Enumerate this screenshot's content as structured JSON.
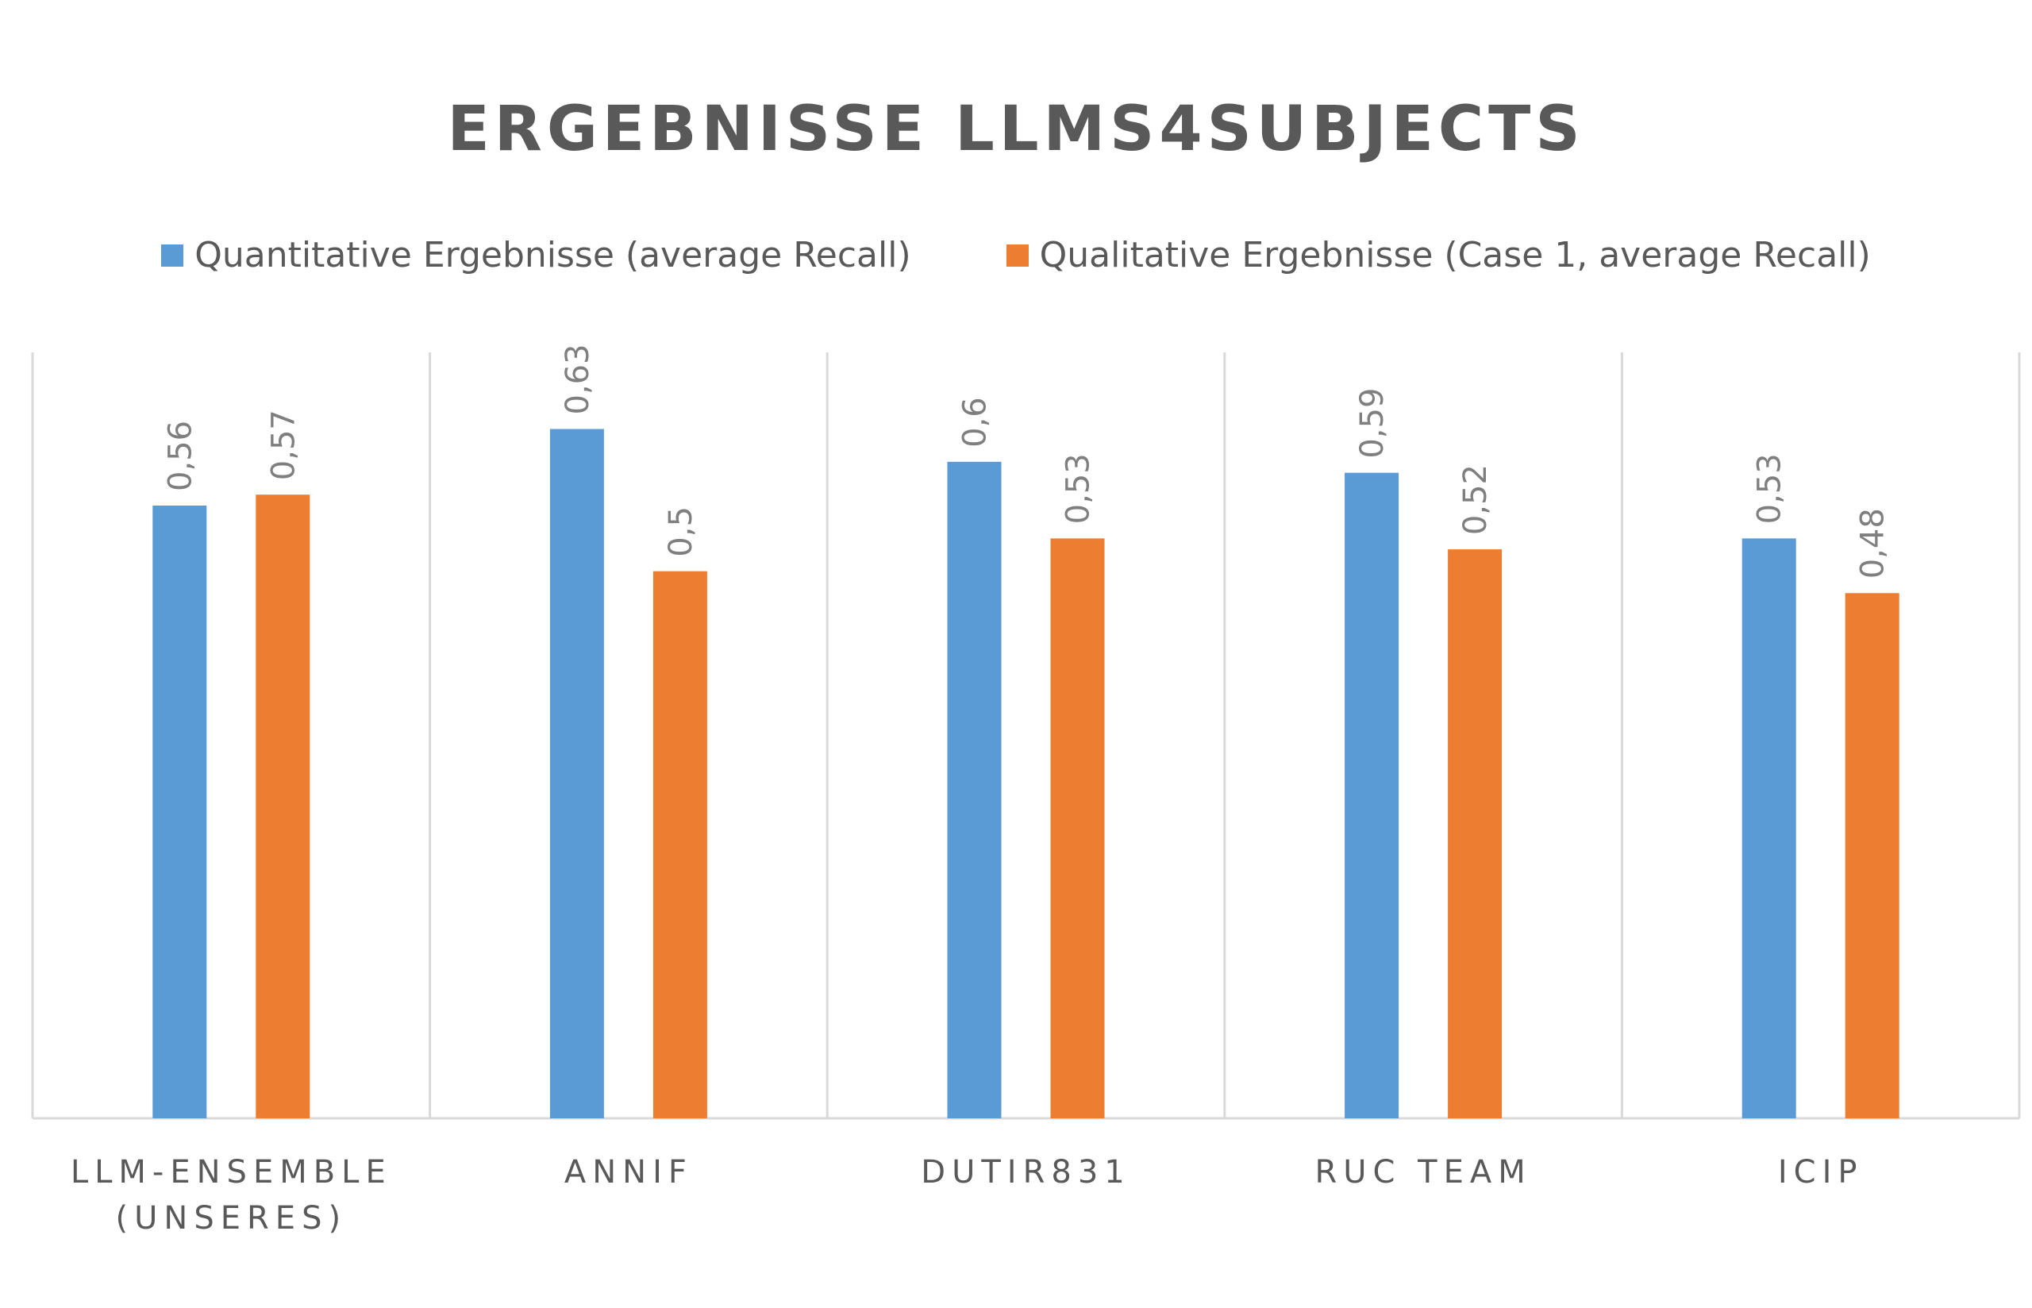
{
  "chart_data": {
    "type": "bar",
    "title": "ERGEBNISSE LLMS4SUBJECTS",
    "categories": [
      "LLM-ENSEMBLE (UNSERES)",
      "ANNIF",
      "DUTIR831",
      "RUC TEAM",
      "ICIP"
    ],
    "category_lines": [
      [
        "LLM-ENSEMBLE",
        "(UNSERES)"
      ],
      [
        "ANNIF"
      ],
      [
        "DUTIR831"
      ],
      [
        "RUC TEAM"
      ],
      [
        "ICIP"
      ]
    ],
    "series": [
      {
        "name": "Quantitative Ergebnisse (average Recall)",
        "color": "#5b9bd5",
        "values": [
          0.56,
          0.63,
          0.6,
          0.59,
          0.53
        ],
        "labels": [
          "0,56",
          "0,63",
          "0,6",
          "0,59",
          "0,53"
        ]
      },
      {
        "name": "Qualitative Ergebnisse (Case 1, average Recall)",
        "color": "#ed7d31",
        "values": [
          0.57,
          0.5,
          0.53,
          0.52,
          0.48
        ],
        "labels": [
          "0,57",
          "0,5",
          "0,53",
          "0,52",
          "0,48"
        ]
      }
    ],
    "xlabel": "",
    "ylabel": "",
    "ylim": [
      0,
      0.7
    ],
    "grid": "vertical category separators",
    "legend": "top"
  }
}
